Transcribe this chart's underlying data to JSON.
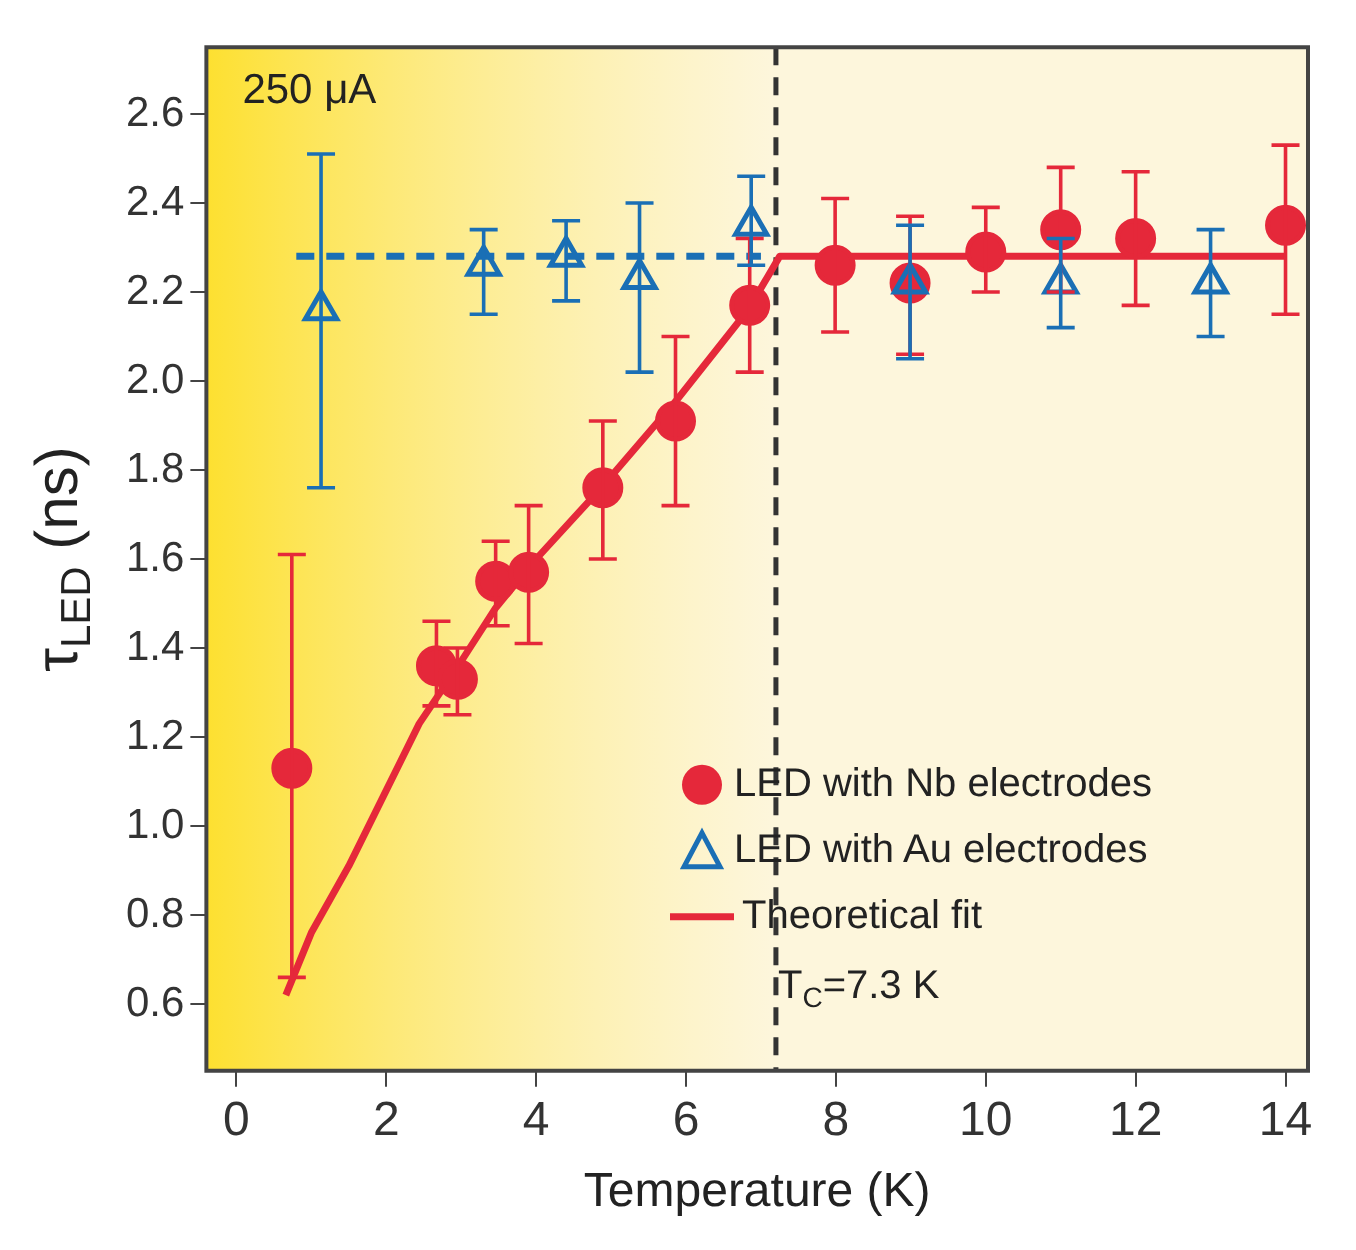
{
  "chart_data": {
    "type": "scatter",
    "xlabel": "Temperature (K)",
    "ylabel": "τ$_{LED}$ (ns)",
    "xlim": [
      -0.4,
      14.3
    ],
    "xticks": [
      0,
      2,
      4,
      6,
      8,
      10,
      12,
      14
    ],
    "ylim": [
      0.45,
      2.75
    ],
    "yticks": [
      0.6,
      0.8,
      {
        "value": 1,
        "label": "1.0"
      },
      1.2,
      1.4,
      1.6,
      1.8,
      {
        "value": 2,
        "label": "2.0"
      },
      2.2,
      2.4,
      2.6
    ],
    "legend": "bottom right",
    "series": [
      {
        "name": "LED with Nb electrodes",
        "marker": "circle",
        "color": "#e5283a",
        "x": [
          0.74,
          2.67,
          2.95,
          3.46,
          3.9,
          4.89,
          5.86,
          6.85,
          7.99,
          8.99,
          10.0,
          11.0,
          12.0,
          14.0
        ],
        "values": [
          1.13,
          1.36,
          1.33,
          1.55,
          1.57,
          1.76,
          1.91,
          2.17,
          2.26,
          2.22,
          2.29,
          2.34,
          2.32,
          2.35
        ],
        "errors": [
          [
            0.66,
            1.61
          ],
          [
            1.27,
            1.46
          ],
          [
            1.25,
            1.4
          ],
          [
            1.45,
            1.64
          ],
          [
            1.41,
            1.72
          ],
          [
            1.6,
            1.91
          ],
          [
            1.72,
            2.1
          ],
          [
            2.02,
            2.32
          ],
          [
            2.11,
            2.41
          ],
          [
            2.06,
            2.37
          ],
          [
            2.2,
            2.39
          ],
          [
            2.2,
            2.48
          ],
          [
            2.17,
            2.47
          ],
          [
            2.15,
            2.53
          ]
        ]
      },
      {
        "name": "LED with Au electrodes",
        "marker": "triangle",
        "color": "#1a6fb5",
        "x": [
          1.13,
          3.3,
          4.4,
          5.38,
          6.87,
          8.99,
          11.0,
          13.0
        ],
        "values": [
          2.16,
          2.26,
          2.28,
          2.23,
          2.35,
          2.22,
          2.22,
          2.22
        ],
        "errors": [
          [
            1.76,
            2.51
          ],
          [
            2.15,
            2.34
          ],
          [
            2.18,
            2.36
          ],
          [
            2.02,
            2.4
          ],
          [
            2.26,
            2.46
          ],
          [
            2.05,
            2.35
          ],
          [
            2.12,
            2.32
          ],
          [
            2.1,
            2.34
          ]
        ]
      },
      {
        "name": "Theoretical fit",
        "type": "line",
        "marker": "none",
        "line_style": "solid",
        "color": "#e5283a",
        "x": [
          0.66,
          1.0,
          1.5,
          2.0,
          2.44,
          3.0,
          3.46,
          4.0,
          4.87,
          5.89,
          6.83,
          7.25,
          14.0
        ],
        "values": [
          0.62,
          0.76,
          0.91,
          1.08,
          1.23,
          1.37,
          1.49,
          1.6,
          1.76,
          1.96,
          2.16,
          2.28,
          2.28
        ]
      },
      {
        "type": "line",
        "marker": "none",
        "line_style": "dashed",
        "color": "#1a6fb5",
        "x": [
          0.8,
          7.0
        ],
        "values": [
          2.28,
          2.28
        ]
      }
    ],
    "ref_lines": [
      {
        "axis": "x",
        "value": 7.2,
        "color": "#333333",
        "line_style": "dashed"
      }
    ],
    "bands": [
      {
        "axis": "x",
        "from": -0.4,
        "to": 7.2,
        "color": "#fde030"
      }
    ],
    "annotations": [
      "250 μA",
      "T$_{C}$=7.3 K"
    ]
  }
}
